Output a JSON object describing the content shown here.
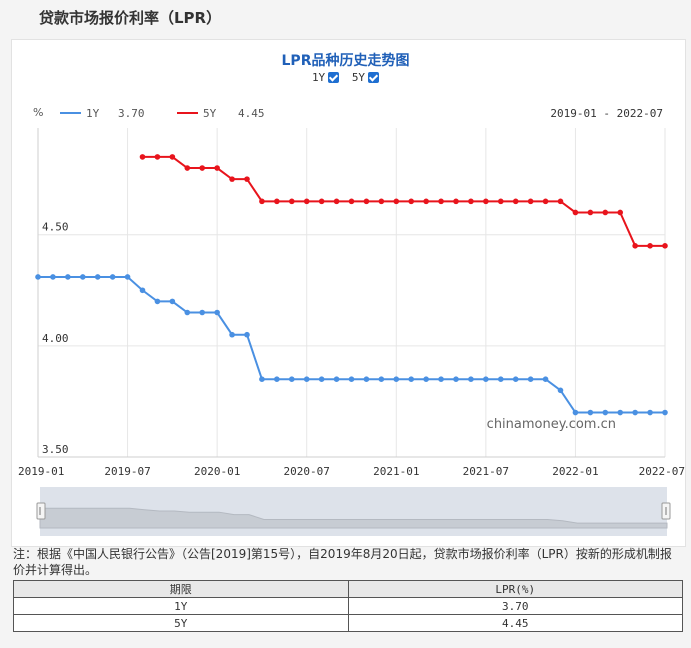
{
  "page": {
    "title": "贷款市场报价利率（LPR）"
  },
  "chart_header": {
    "title": "LPR品种历史走势图",
    "toggles": [
      {
        "label": "1Y",
        "checked": true
      },
      {
        "label": "5Y",
        "checked": true
      }
    ],
    "unit": "%",
    "date_range": "2019-01 - 2022-07",
    "watermark": "chinamoney.com.cn"
  },
  "chart_data": {
    "type": "line",
    "x_start": "2019-01",
    "x_end": "2022-07",
    "x_ticks": [
      "2019-01",
      "2019-07",
      "2020-01",
      "2020-07",
      "2021-01",
      "2021-07",
      "2022-01",
      "2022-07"
    ],
    "y_ticks": [
      "3.50",
      "4.00",
      "4.50"
    ],
    "ylim": [
      3.5,
      4.98
    ],
    "grid": true,
    "legend_position": "top-left",
    "series": [
      {
        "name": "1Y",
        "latest": "3.70",
        "color": "#4a90e2",
        "points": [
          [
            "2019-01",
            4.31
          ],
          [
            "2019-02",
            4.31
          ],
          [
            "2019-03",
            4.31
          ],
          [
            "2019-04",
            4.31
          ],
          [
            "2019-05",
            4.31
          ],
          [
            "2019-06",
            4.31
          ],
          [
            "2019-07",
            4.31
          ],
          [
            "2019-08",
            4.25
          ],
          [
            "2019-09",
            4.2
          ],
          [
            "2019-10",
            4.2
          ],
          [
            "2019-11",
            4.15
          ],
          [
            "2019-12",
            4.15
          ],
          [
            "2020-01",
            4.15
          ],
          [
            "2020-02",
            4.05
          ],
          [
            "2020-03",
            4.05
          ],
          [
            "2020-04",
            3.85
          ],
          [
            "2020-05",
            3.85
          ],
          [
            "2020-06",
            3.85
          ],
          [
            "2020-07",
            3.85
          ],
          [
            "2020-08",
            3.85
          ],
          [
            "2020-09",
            3.85
          ],
          [
            "2020-10",
            3.85
          ],
          [
            "2020-11",
            3.85
          ],
          [
            "2020-12",
            3.85
          ],
          [
            "2021-01",
            3.85
          ],
          [
            "2021-02",
            3.85
          ],
          [
            "2021-03",
            3.85
          ],
          [
            "2021-04",
            3.85
          ],
          [
            "2021-05",
            3.85
          ],
          [
            "2021-06",
            3.85
          ],
          [
            "2021-07",
            3.85
          ],
          [
            "2021-08",
            3.85
          ],
          [
            "2021-09",
            3.85
          ],
          [
            "2021-10",
            3.85
          ],
          [
            "2021-11",
            3.85
          ],
          [
            "2021-12",
            3.8
          ],
          [
            "2022-01",
            3.7
          ],
          [
            "2022-02",
            3.7
          ],
          [
            "2022-03",
            3.7
          ],
          [
            "2022-04",
            3.7
          ],
          [
            "2022-05",
            3.7
          ],
          [
            "2022-06",
            3.7
          ],
          [
            "2022-07",
            3.7
          ]
        ]
      },
      {
        "name": "5Y",
        "latest": "4.45",
        "color": "#e8141c",
        "points": [
          [
            "2019-08",
            4.85
          ],
          [
            "2019-09",
            4.85
          ],
          [
            "2019-10",
            4.85
          ],
          [
            "2019-11",
            4.8
          ],
          [
            "2019-12",
            4.8
          ],
          [
            "2020-01",
            4.8
          ],
          [
            "2020-02",
            4.75
          ],
          [
            "2020-03",
            4.75
          ],
          [
            "2020-04",
            4.65
          ],
          [
            "2020-05",
            4.65
          ],
          [
            "2020-06",
            4.65
          ],
          [
            "2020-07",
            4.65
          ],
          [
            "2020-08",
            4.65
          ],
          [
            "2020-09",
            4.65
          ],
          [
            "2020-10",
            4.65
          ],
          [
            "2020-11",
            4.65
          ],
          [
            "2020-12",
            4.65
          ],
          [
            "2021-01",
            4.65
          ],
          [
            "2021-02",
            4.65
          ],
          [
            "2021-03",
            4.65
          ],
          [
            "2021-04",
            4.65
          ],
          [
            "2021-05",
            4.65
          ],
          [
            "2021-06",
            4.65
          ],
          [
            "2021-07",
            4.65
          ],
          [
            "2021-08",
            4.65
          ],
          [
            "2021-09",
            4.65
          ],
          [
            "2021-10",
            4.65
          ],
          [
            "2021-11",
            4.65
          ],
          [
            "2021-12",
            4.65
          ],
          [
            "2022-01",
            4.6
          ],
          [
            "2022-02",
            4.6
          ],
          [
            "2022-03",
            4.6
          ],
          [
            "2022-04",
            4.6
          ],
          [
            "2022-05",
            4.45
          ],
          [
            "2022-06",
            4.45
          ],
          [
            "2022-07",
            4.45
          ]
        ]
      }
    ]
  },
  "note": "注：根据《中国人民银行公告》（公告[2019]第15号），自2019年8月20日起，贷款市场报价利率（LPR）按新的形成机制报价并计算得出。",
  "table": {
    "headers": [
      "期限",
      "LPR(%)"
    ],
    "rows": [
      [
        "1Y",
        "3.70"
      ],
      [
        "5Y",
        "4.45"
      ]
    ]
  }
}
